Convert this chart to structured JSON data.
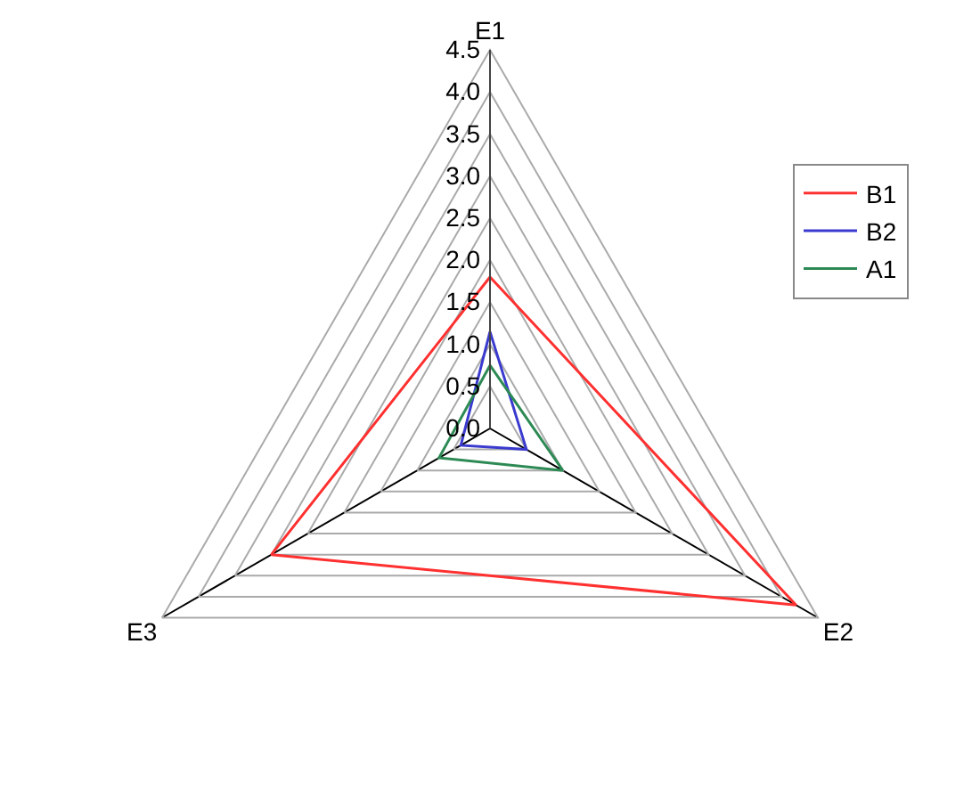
{
  "chart_data": {
    "type": "radar",
    "categories": [
      "E1",
      "E2",
      "E3"
    ],
    "series": [
      {
        "name": "B1",
        "color": "#ff3030",
        "values": [
          1.8,
          4.2,
          3.0
        ]
      },
      {
        "name": "B2",
        "color": "#3a3acf",
        "values": [
          1.15,
          0.5,
          0.4
        ]
      },
      {
        "name": "A1",
        "color": "#2e8a55",
        "values": [
          0.75,
          1.0,
          0.7
        ]
      }
    ],
    "ylim": [
      0,
      4.5
    ],
    "yticks": [
      {
        "value": 0,
        "label": "0.0"
      },
      0.5,
      {
        "value": 1,
        "label": "1.0"
      },
      1.5,
      {
        "value": 2,
        "label": "2.0"
      },
      2.5,
      {
        "value": 3,
        "label": "3.0"
      },
      3.5,
      {
        "value": 4,
        "label": "4.0"
      },
      4.5
    ],
    "grid": true,
    "legend": "top right",
    "marker": "none",
    "line_style": "solid"
  }
}
